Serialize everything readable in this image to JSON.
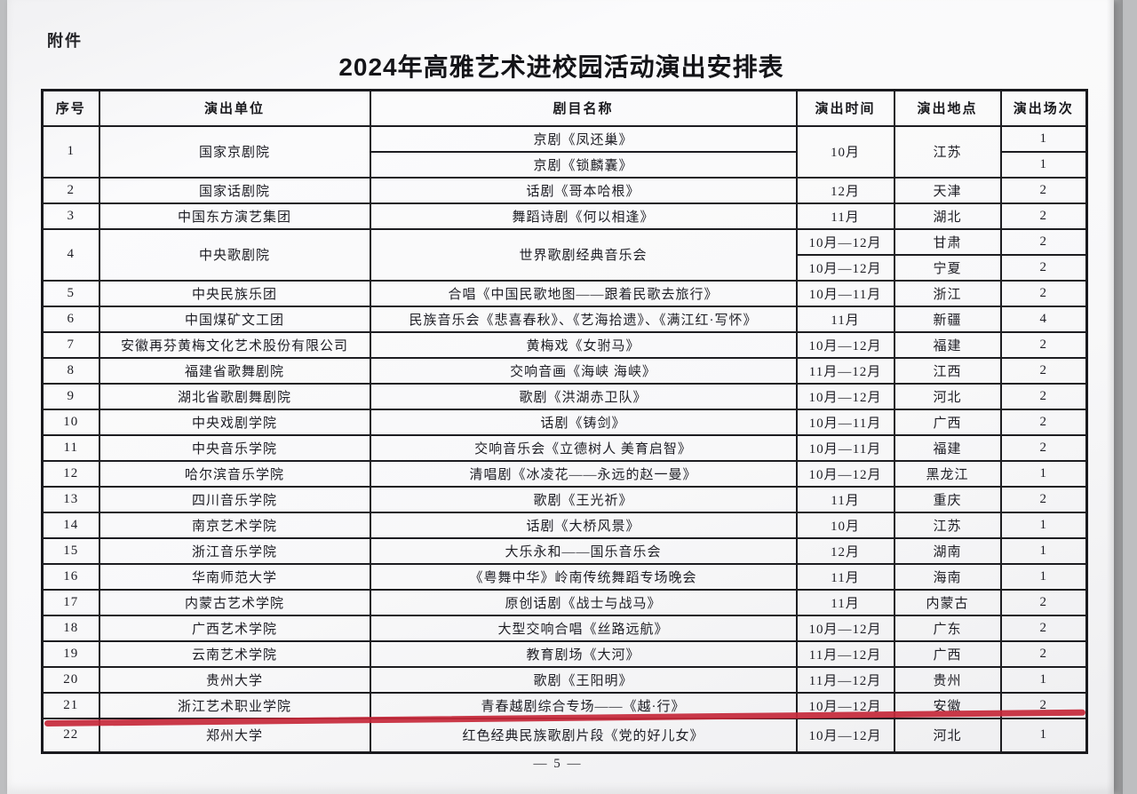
{
  "page": {
    "attachment_label": "附件",
    "title": "2024年高雅艺术进校园活动演出安排表",
    "page_number": "— 5 —",
    "accent_red": "#c5283a"
  },
  "table": {
    "headers": [
      "序号",
      "演出单位",
      "剧目名称",
      "演出时间",
      "演出地点",
      "演出场次"
    ],
    "rows": [
      [
        {
          "t": "1",
          "rs": 2
        },
        {
          "t": "国家京剧院",
          "rs": 2
        },
        {
          "t": "京剧《凤还巢》"
        },
        {
          "t": "10月",
          "rs": 2
        },
        {
          "t": "江苏",
          "rs": 2
        },
        {
          "t": "1"
        }
      ],
      [
        {
          "t": "京剧《锁麟囊》"
        },
        {
          "t": "1"
        }
      ],
      [
        {
          "t": "2"
        },
        {
          "t": "国家话剧院"
        },
        {
          "t": "话剧《哥本哈根》"
        },
        {
          "t": "12月"
        },
        {
          "t": "天津"
        },
        {
          "t": "2"
        }
      ],
      [
        {
          "t": "3"
        },
        {
          "t": "中国东方演艺集团"
        },
        {
          "t": "舞蹈诗剧《何以相逢》"
        },
        {
          "t": "11月"
        },
        {
          "t": "湖北"
        },
        {
          "t": "2"
        }
      ],
      [
        {
          "t": "4",
          "rs": 2
        },
        {
          "t": "中央歌剧院",
          "rs": 2
        },
        {
          "t": "世界歌剧经典音乐会",
          "rs": 2
        },
        {
          "t": "10月—12月"
        },
        {
          "t": "甘肃"
        },
        {
          "t": "2"
        }
      ],
      [
        {
          "t": "10月—12月"
        },
        {
          "t": "宁夏"
        },
        {
          "t": "2"
        }
      ],
      [
        {
          "t": "5"
        },
        {
          "t": "中央民族乐团"
        },
        {
          "t": "合唱《中国民歌地图——跟着民歌去旅行》"
        },
        {
          "t": "10月—11月"
        },
        {
          "t": "浙江"
        },
        {
          "t": "2"
        }
      ],
      [
        {
          "t": "6"
        },
        {
          "t": "中国煤矿文工团"
        },
        {
          "t": "民族音乐会《悲喜春秋》、《艺海拾遗》、《满江红·写怀》"
        },
        {
          "t": "11月"
        },
        {
          "t": "新疆"
        },
        {
          "t": "4"
        }
      ],
      [
        {
          "t": "7"
        },
        {
          "t": "安徽再芬黄梅文化艺术股份有限公司"
        },
        {
          "t": "黄梅戏《女驸马》"
        },
        {
          "t": "10月—12月"
        },
        {
          "t": "福建"
        },
        {
          "t": "2"
        }
      ],
      [
        {
          "t": "8"
        },
        {
          "t": "福建省歌舞剧院"
        },
        {
          "t": "交响音画《海峡 海峡》"
        },
        {
          "t": "11月—12月"
        },
        {
          "t": "江西"
        },
        {
          "t": "2"
        }
      ],
      [
        {
          "t": "9"
        },
        {
          "t": "湖北省歌剧舞剧院"
        },
        {
          "t": "歌剧《洪湖赤卫队》"
        },
        {
          "t": "10月—12月"
        },
        {
          "t": "河北"
        },
        {
          "t": "2"
        }
      ],
      [
        {
          "t": "10"
        },
        {
          "t": "中央戏剧学院"
        },
        {
          "t": "话剧《铸剑》"
        },
        {
          "t": "10月—11月"
        },
        {
          "t": "广西"
        },
        {
          "t": "2"
        }
      ],
      [
        {
          "t": "11"
        },
        {
          "t": "中央音乐学院"
        },
        {
          "t": "交响音乐会《立德树人 美育启智》"
        },
        {
          "t": "10月—11月"
        },
        {
          "t": "福建"
        },
        {
          "t": "2"
        }
      ],
      [
        {
          "t": "12"
        },
        {
          "t": "哈尔滨音乐学院"
        },
        {
          "t": "清唱剧《冰凌花——永远的赵一曼》"
        },
        {
          "t": "10月—12月"
        },
        {
          "t": "黑龙江"
        },
        {
          "t": "1"
        }
      ],
      [
        {
          "t": "13"
        },
        {
          "t": "四川音乐学院"
        },
        {
          "t": "歌剧《王光祈》"
        },
        {
          "t": "11月"
        },
        {
          "t": "重庆"
        },
        {
          "t": "2"
        }
      ],
      [
        {
          "t": "14"
        },
        {
          "t": "南京艺术学院"
        },
        {
          "t": "话剧《大桥风景》"
        },
        {
          "t": "10月"
        },
        {
          "t": "江苏"
        },
        {
          "t": "1"
        }
      ],
      [
        {
          "t": "15"
        },
        {
          "t": "浙江音乐学院"
        },
        {
          "t": "大乐永和——国乐音乐会"
        },
        {
          "t": "12月"
        },
        {
          "t": "湖南"
        },
        {
          "t": "1"
        }
      ],
      [
        {
          "t": "16"
        },
        {
          "t": "华南师范大学"
        },
        {
          "t": "《粤舞中华》岭南传统舞蹈专场晚会"
        },
        {
          "t": "11月"
        },
        {
          "t": "海南"
        },
        {
          "t": "1"
        }
      ],
      [
        {
          "t": "17"
        },
        {
          "t": "内蒙古艺术学院"
        },
        {
          "t": "原创话剧《战士与战马》"
        },
        {
          "t": "11月"
        },
        {
          "t": "内蒙古"
        },
        {
          "t": "2"
        }
      ],
      [
        {
          "t": "18"
        },
        {
          "t": "广西艺术学院"
        },
        {
          "t": "大型交响合唱《丝路远航》"
        },
        {
          "t": "10月—12月"
        },
        {
          "t": "广东"
        },
        {
          "t": "2"
        }
      ],
      [
        {
          "t": "19"
        },
        {
          "t": "云南艺术学院"
        },
        {
          "t": "教育剧场《大河》"
        },
        {
          "t": "11月—12月"
        },
        {
          "t": "广西"
        },
        {
          "t": "2"
        }
      ],
      [
        {
          "t": "20"
        },
        {
          "t": "贵州大学"
        },
        {
          "t": "歌剧《王阳明》"
        },
        {
          "t": "11月—12月"
        },
        {
          "t": "贵州"
        },
        {
          "t": "1"
        }
      ],
      [
        {
          "t": "21"
        },
        {
          "t": "浙江艺术职业学院"
        },
        {
          "t": "青春越剧综合专场——《越·行》"
        },
        {
          "t": "10月—12月"
        },
        {
          "t": "安徽"
        },
        {
          "t": "2"
        }
      ],
      [
        {
          "t": "22"
        },
        {
          "t": "郑州大学"
        },
        {
          "t": "红色经典民族歌剧片段《党的好儿女》"
        },
        {
          "t": "10月—12月"
        },
        {
          "t": "河北"
        },
        {
          "t": "1"
        }
      ]
    ]
  }
}
